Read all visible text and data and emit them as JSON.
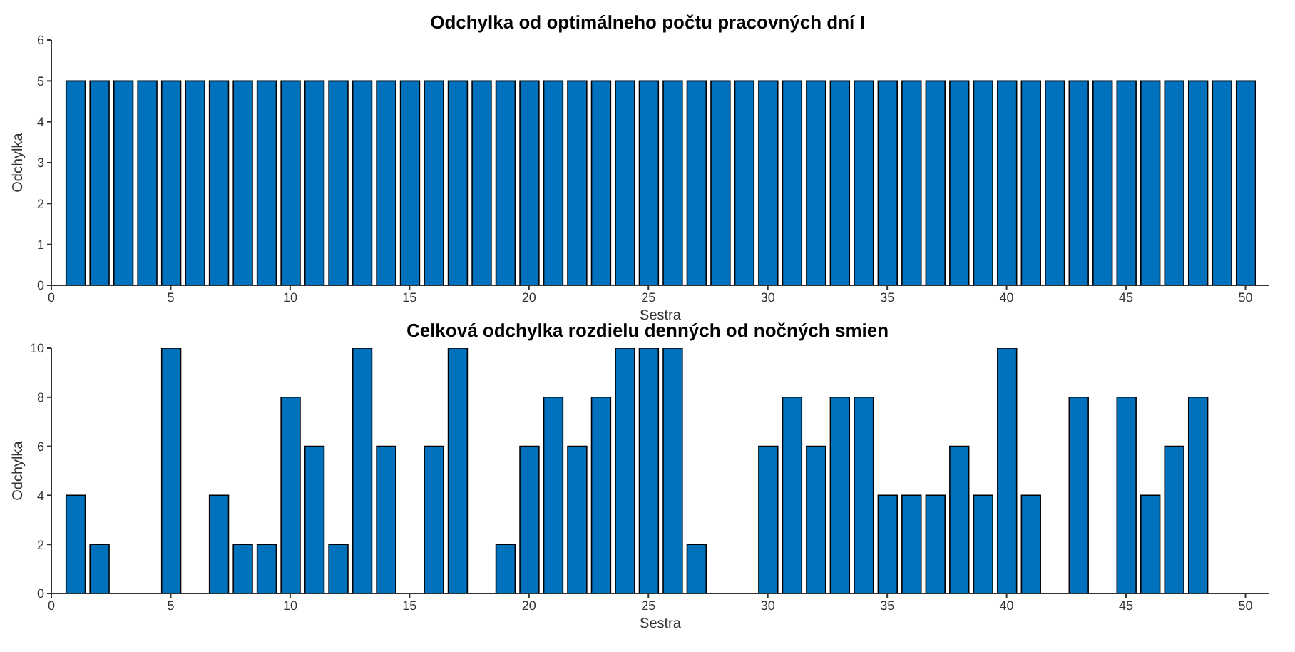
{
  "chart_data": [
    {
      "type": "bar",
      "title": "Odchylka od optimálneho počtu pracovných dní I",
      "xlabel": "Sestra",
      "ylabel": "Odchylka",
      "x": [
        1,
        2,
        3,
        4,
        5,
        6,
        7,
        8,
        9,
        10,
        11,
        12,
        13,
        14,
        15,
        16,
        17,
        18,
        19,
        20,
        21,
        22,
        23,
        24,
        25,
        26,
        27,
        28,
        29,
        30,
        31,
        32,
        33,
        34,
        35,
        36,
        37,
        38,
        39,
        40,
        41,
        42,
        43,
        44,
        45,
        46,
        47,
        48,
        49,
        50
      ],
      "values": [
        5,
        5,
        5,
        5,
        5,
        5,
        5,
        5,
        5,
        5,
        5,
        5,
        5,
        5,
        5,
        5,
        5,
        5,
        5,
        5,
        5,
        5,
        5,
        5,
        5,
        5,
        5,
        5,
        5,
        5,
        5,
        5,
        5,
        5,
        5,
        5,
        5,
        5,
        5,
        5,
        5,
        5,
        5,
        5,
        5,
        5,
        5,
        5,
        5,
        5
      ],
      "color": "#0072bd",
      "xlim": [
        0,
        51
      ],
      "xticks": [
        0,
        5,
        10,
        15,
        20,
        25,
        30,
        35,
        40,
        45,
        50
      ],
      "ylim": [
        0,
        6
      ],
      "yticks": [
        0,
        1,
        2,
        3,
        4,
        5,
        6
      ]
    },
    {
      "type": "bar",
      "title": "Celková odchylka rozdielu denných od nočných smien",
      "xlabel": "Sestra",
      "ylabel": "Odchylka",
      "x": [
        1,
        2,
        3,
        4,
        5,
        6,
        7,
        8,
        9,
        10,
        11,
        12,
        13,
        14,
        15,
        16,
        17,
        18,
        19,
        20,
        21,
        22,
        23,
        24,
        25,
        26,
        27,
        28,
        29,
        30,
        31,
        32,
        33,
        34,
        35,
        36,
        37,
        38,
        39,
        40,
        41,
        42,
        43,
        44,
        45,
        46,
        47,
        48,
        49,
        50
      ],
      "values": [
        4,
        2,
        0,
        0,
        10,
        0,
        4,
        2,
        2,
        8,
        6,
        2,
        10,
        6,
        0,
        6,
        10,
        0,
        2,
        6,
        8,
        6,
        8,
        10,
        10,
        10,
        2,
        0,
        0,
        6,
        8,
        6,
        8,
        8,
        4,
        4,
        4,
        6,
        4,
        10,
        4,
        0,
        8,
        0,
        8,
        4,
        6,
        8,
        0,
        0
      ],
      "color": "#0072bd",
      "xlim": [
        0,
        51
      ],
      "xticks": [
        0,
        5,
        10,
        15,
        20,
        25,
        30,
        35,
        40,
        45,
        50
      ],
      "ylim": [
        0,
        10
      ],
      "yticks": [
        0,
        2,
        4,
        6,
        8,
        10
      ]
    }
  ]
}
